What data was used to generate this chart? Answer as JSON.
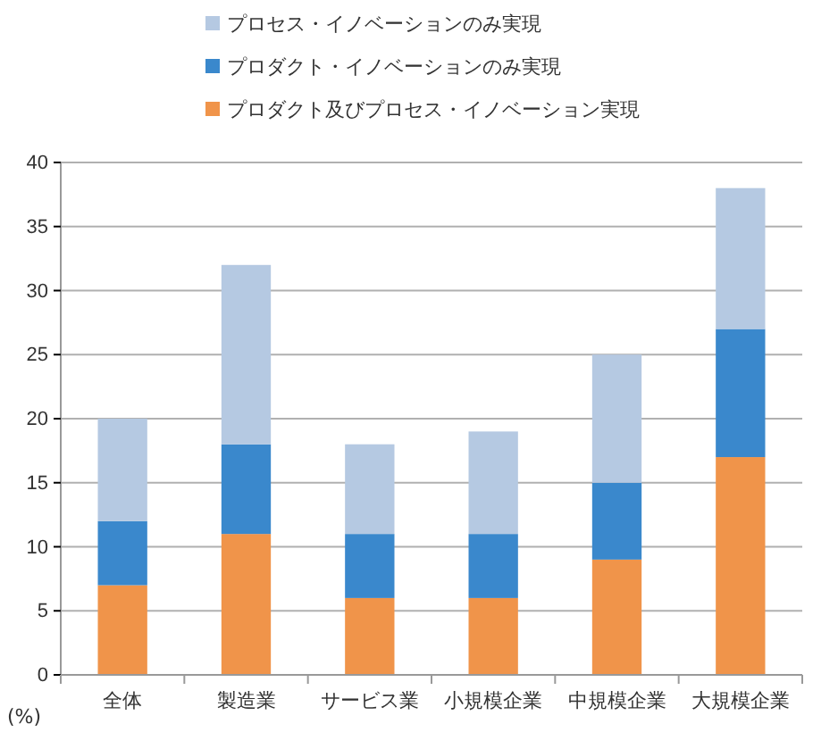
{
  "chart_data": {
    "type": "bar",
    "stacked": true,
    "ylabel": "(%)",
    "categories": [
      "全体",
      "製造業",
      "サービス業",
      "小規模企業",
      "中規模企業",
      "大規模企業"
    ],
    "series": [
      {
        "name": "プロダクト及びプロセス・イノベーション実現",
        "color": "#f0944a",
        "values": [
          7,
          11,
          6,
          6,
          9,
          17
        ]
      },
      {
        "name": "プロダクト・イノベーションのみ実現",
        "color": "#3a88cc",
        "values": [
          5,
          7,
          5,
          5,
          6,
          10
        ]
      },
      {
        "name": "プロセス・イノベーションのみ実現",
        "color": "#b5c9e2",
        "values": [
          8,
          14,
          7,
          8,
          10,
          11
        ]
      }
    ],
    "ylim": [
      0,
      40
    ],
    "yticks": [
      0,
      5,
      10,
      15,
      20,
      25,
      30,
      35,
      40
    ],
    "grid": "y",
    "legend": "top"
  }
}
